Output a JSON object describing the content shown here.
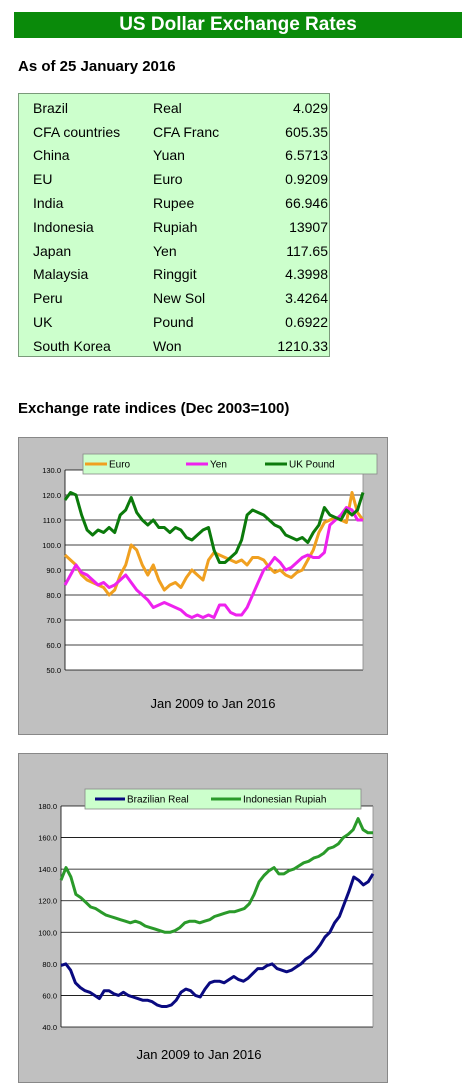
{
  "header": {
    "title": "US Dollar Exchange Rates",
    "as_of": "As of 25 January 2016"
  },
  "rates": [
    {
      "country": "Brazil",
      "currency": "Real",
      "value": "4.029"
    },
    {
      "country": "CFA countries",
      "currency": "CFA Franc",
      "value": "605.35"
    },
    {
      "country": "China",
      "currency": "Yuan",
      "value": "6.5713"
    },
    {
      "country": "EU",
      "currency": "Euro",
      "value": "0.9209"
    },
    {
      "country": "India",
      "currency": "Rupee",
      "value": "66.946"
    },
    {
      "country": "Indonesia",
      "currency": "Rupiah",
      "value": "13907"
    },
    {
      "country": "Japan",
      "currency": "Yen",
      "value": "117.65"
    },
    {
      "country": "Malaysia",
      "currency": "Ringgit",
      "value": "4.3998"
    },
    {
      "country": "Peru",
      "currency": "New Sol",
      "value": "3.4264"
    },
    {
      "country": "UK",
      "currency": "Pound",
      "value": "0.6922"
    },
    {
      "country": "South Korea",
      "currency": "Won",
      "value": "1210.33"
    }
  ],
  "section_title": "Exchange rate indices (Dec 2003=100)",
  "chart_data": [
    {
      "type": "line",
      "xlabel": "Jan 2009 to Jan 2016",
      "ylim": [
        50,
        130
      ],
      "yticks": [
        "50.0",
        "60.0",
        "70.0",
        "80.0",
        "90.0",
        "100.0",
        "110.0",
        "120.0",
        "130.0"
      ],
      "grid": true,
      "legend": "top",
      "series": [
        {
          "name": "Euro",
          "color": "#f0a020",
          "values": [
            96,
            94,
            92,
            88,
            86,
            85,
            84,
            83,
            80,
            82,
            88,
            92,
            100,
            98,
            92,
            88,
            92,
            86,
            82,
            84,
            85,
            83,
            87,
            90,
            88,
            86,
            94,
            97,
            96,
            95,
            94,
            93,
            94,
            92,
            95,
            95,
            94,
            91,
            89,
            90,
            88,
            87,
            89,
            90,
            94,
            98,
            105,
            109,
            110,
            111,
            110,
            109,
            121,
            113,
            110
          ]
        },
        {
          "name": "Yen",
          "color": "#ee22ee",
          "values": [
            84,
            88,
            92,
            89,
            88,
            86,
            84,
            85,
            83,
            84,
            86,
            88,
            85,
            82,
            80,
            78,
            75,
            76,
            77,
            76,
            75,
            74,
            72,
            71,
            72,
            71,
            72,
            71,
            76,
            76,
            73,
            72,
            72,
            75,
            80,
            85,
            90,
            92,
            95,
            93,
            90,
            91,
            93,
            95,
            96,
            95,
            95,
            97,
            108,
            110,
            112,
            115,
            114,
            110,
            110
          ]
        },
        {
          "name": "UK Pound",
          "color": "#0b7a0b",
          "values": [
            118,
            121,
            120,
            112,
            106,
            104,
            106,
            105,
            107,
            105,
            112,
            114,
            119,
            113,
            110,
            108,
            110,
            107,
            107,
            105,
            107,
            106,
            103,
            102,
            104,
            106,
            107,
            98,
            93,
            93,
            95,
            97,
            102,
            112,
            114,
            113,
            112,
            110,
            108,
            107,
            104,
            103,
            102,
            103,
            101,
            105,
            108,
            115,
            112,
            111,
            110,
            114,
            112,
            114,
            121
          ]
        }
      ]
    },
    {
      "type": "line",
      "xlabel": "Jan 2009 to Jan 2016",
      "ylim": [
        40,
        180
      ],
      "yticks": [
        "40.0",
        "60.0",
        "80.0",
        "100.0",
        "120.0",
        "140.0",
        "160.0",
        "180.0"
      ],
      "grid": true,
      "legend": "top",
      "series": [
        {
          "name": "Brazilian Real",
          "color": "#0a0a80",
          "values": [
            79,
            80,
            76,
            68,
            65,
            63,
            62,
            60,
            58,
            63,
            63,
            61,
            60,
            62,
            60,
            59,
            58,
            57,
            57,
            56,
            54,
            53,
            53,
            54,
            57,
            62,
            64,
            63,
            60,
            59,
            64,
            68,
            69,
            69,
            68,
            70,
            72,
            70,
            69,
            71,
            74,
            77,
            77,
            79,
            80,
            77,
            76,
            75,
            76,
            78,
            80,
            83,
            85,
            88,
            92,
            97,
            100,
            106,
            110,
            118,
            126,
            135,
            133,
            130,
            132,
            137
          ]
        },
        {
          "name": "Indonesian Rupiah",
          "color": "#2a9a2a",
          "values": [
            133,
            141,
            135,
            124,
            122,
            119,
            116,
            115,
            113,
            111,
            110,
            109,
            108,
            107,
            106,
            107,
            106,
            104,
            103,
            102,
            101,
            100,
            100,
            101,
            103,
            106,
            107,
            107,
            106,
            107,
            108,
            110,
            111,
            112,
            113,
            113,
            114,
            115,
            118,
            124,
            132,
            136,
            139,
            141,
            137,
            137,
            139,
            140,
            142,
            144,
            145,
            147,
            148,
            150,
            153,
            154,
            156,
            160,
            162,
            165,
            172,
            165,
            163,
            163
          ]
        }
      ]
    }
  ]
}
